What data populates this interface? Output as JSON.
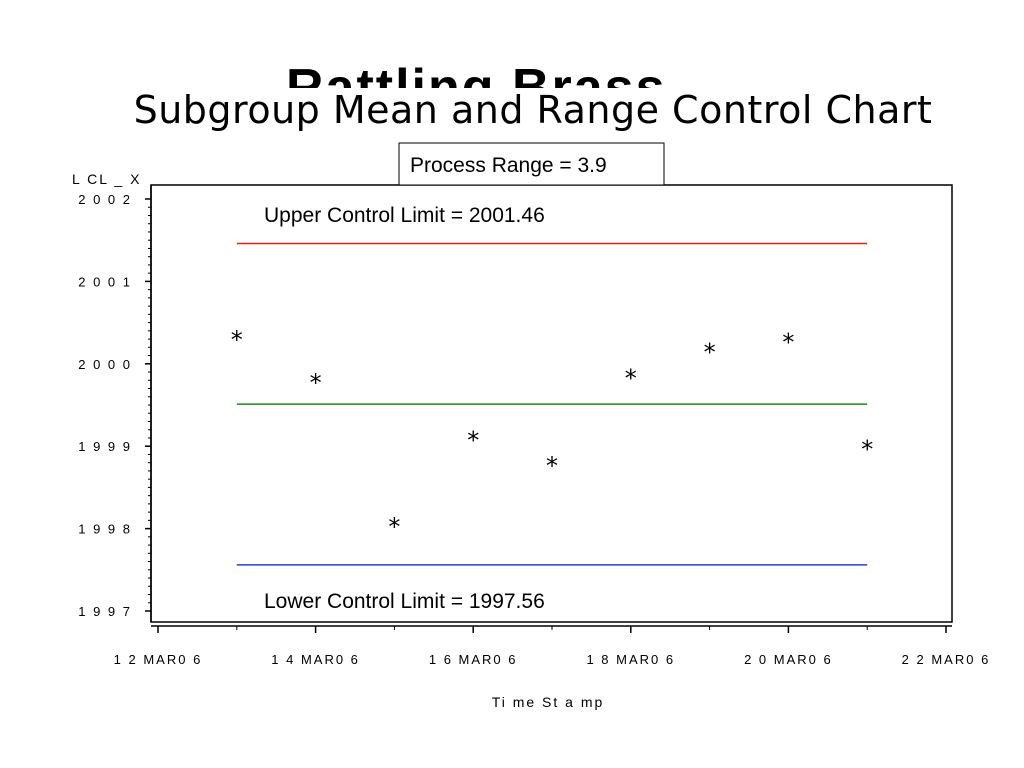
{
  "slide": {
    "partial_title": "Rattling Brass",
    "chart_title": "Subgroup Mean and Range Control Chart"
  },
  "chart_data": {
    "type": "scatter",
    "title": "Subgroup Mean and Range Control Chart",
    "xlabel": "Ti me St a mp",
    "ylabel": "L CL _ X",
    "x_tick_labels": [
      "1 2 MAR0 6",
      "1 4 MAR0 6",
      "1 6 MAR0 6",
      "1 8 MAR0 6",
      "2 0 MAR0 6",
      "2 2 MAR0 6"
    ],
    "y_tick_labels": [
      "2 0 0 2",
      "2 0 0 1",
      "2 0 0 0",
      "1 9 9 9",
      "1 9 9 8",
      "1 9 9 7"
    ],
    "ylim": [
      1997,
      2002
    ],
    "xlim": [
      "2006-03-12",
      "2006-03-22"
    ],
    "points": [
      {
        "x": "2006-03-13",
        "y": 2000.35
      },
      {
        "x": "2006-03-14",
        "y": 1999.83
      },
      {
        "x": "2006-03-15",
        "y": 1998.08
      },
      {
        "x": "2006-03-16",
        "y": 1999.13
      },
      {
        "x": "2006-03-17",
        "y": 1998.82
      },
      {
        "x": "2006-03-18",
        "y": 1999.88
      },
      {
        "x": "2006-03-19",
        "y": 2000.2
      },
      {
        "x": "2006-03-20",
        "y": 2000.32
      },
      {
        "x": "2006-03-21",
        "y": 1999.02
      }
    ],
    "control_lines": [
      {
        "name": "ucl",
        "value": 2001.46,
        "color": "#e02020",
        "x_start": "2006-03-13",
        "x_end": "2006-03-21"
      },
      {
        "name": "center",
        "value": 1999.51,
        "color": "#1a8a1a",
        "x_start": "2006-03-13",
        "x_end": "2006-03-21"
      },
      {
        "name": "lcl",
        "value": 1997.56,
        "color": "#2040d0",
        "x_start": "2006-03-13",
        "x_end": "2006-03-21"
      }
    ],
    "annotations": {
      "process_range": "Process Range = 3.9",
      "ucl_label": "Upper Control Limit = 2001.46",
      "lcl_label": "Lower Control Limit = 1997.56"
    },
    "grid": false,
    "marker": "*"
  }
}
